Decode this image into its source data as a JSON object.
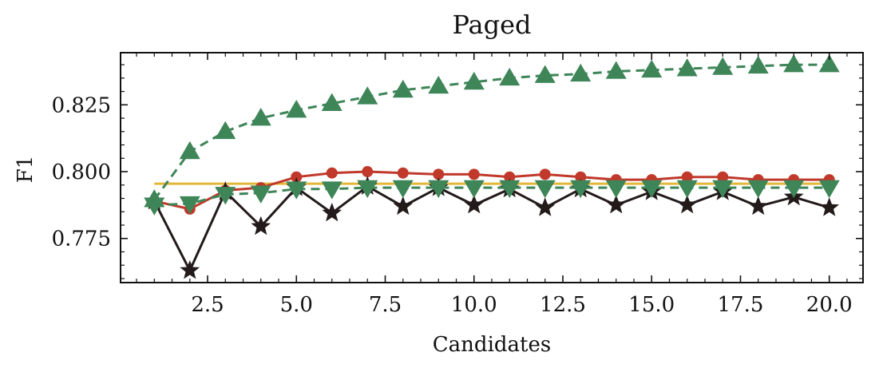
{
  "chart_data": {
    "type": "line",
    "title": "Paged",
    "xlabel": "Candidates",
    "ylabel": "F1",
    "xlim": [
      0.05,
      20.95
    ],
    "ylim": [
      0.7585,
      0.8445
    ],
    "xticks": [
      2.5,
      5.0,
      7.5,
      10.0,
      12.5,
      15.0,
      17.5,
      20.0
    ],
    "xtick_labels": [
      "2.5",
      "5.0",
      "7.5",
      "10.0",
      "12.5",
      "15.0",
      "17.5",
      "20.0"
    ],
    "yticks": [
      0.775,
      0.8,
      0.825
    ],
    "ytick_labels": [
      "0.775",
      "0.800",
      "0.825"
    ],
    "grid": false,
    "x": [
      1,
      2,
      3,
      4,
      5,
      6,
      7,
      8,
      9,
      10,
      11,
      12,
      13,
      14,
      15,
      16,
      17,
      18,
      19,
      20
    ],
    "series": [
      {
        "color": "#c0392b",
        "marker": "circle",
        "dash": "solid",
        "values": [
          0.789,
          0.786,
          0.793,
          0.794,
          0.798,
          0.7995,
          0.8,
          0.7995,
          0.799,
          0.799,
          0.798,
          0.799,
          0.798,
          0.797,
          0.797,
          0.798,
          0.798,
          0.797,
          0.797,
          0.797
        ]
      },
      {
        "color": "#231a1a",
        "marker": "star",
        "dash": "solid",
        "values": [
          0.789,
          0.763,
          0.7925,
          0.7795,
          0.794,
          0.7845,
          0.7945,
          0.787,
          0.794,
          0.7875,
          0.7935,
          0.7865,
          0.7935,
          0.7875,
          0.7925,
          0.7875,
          0.7925,
          0.787,
          0.7905,
          0.7865
        ]
      },
      {
        "color": "#3e8558",
        "marker": "triangle-up",
        "dash": "dashed",
        "values": [
          0.7895,
          0.8075,
          0.815,
          0.82,
          0.823,
          0.8255,
          0.828,
          0.8305,
          0.832,
          0.8335,
          0.835,
          0.836,
          0.8365,
          0.8375,
          0.838,
          0.8385,
          0.839,
          0.8395,
          0.84,
          0.84
        ]
      },
      {
        "color": "#3e8558",
        "marker": "triangle-down",
        "dash": "dashed",
        "values": [
          0.7875,
          0.788,
          0.7915,
          0.792,
          0.7935,
          0.7935,
          0.794,
          0.794,
          0.794,
          0.794,
          0.794,
          0.794,
          0.794,
          0.794,
          0.794,
          0.794,
          0.794,
          0.794,
          0.794,
          0.794
        ]
      },
      {
        "color": "#e3b83a",
        "marker": "none",
        "dash": "solid",
        "values": [
          0.7955,
          0.7955,
          0.7955,
          0.7955,
          0.7955,
          0.7955,
          0.7955,
          0.7955,
          0.7955,
          0.7955,
          0.7955,
          0.7955,
          0.7955,
          0.7955,
          0.7955,
          0.7955,
          0.7955,
          0.7955,
          0.7955,
          0.7955
        ]
      }
    ]
  }
}
